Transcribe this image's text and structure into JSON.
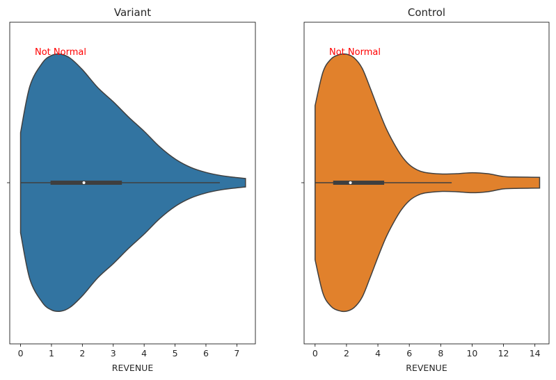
{
  "chart_data": [
    {
      "type": "violin",
      "title": "Variant",
      "xlabel": "REVENUE",
      "ylabel": "",
      "color": "#3274a1",
      "xlim": [
        -0.35,
        7.6
      ],
      "xticks": [
        0,
        1,
        2,
        3,
        4,
        5,
        6,
        7
      ],
      "annotation": "Not Normal",
      "density_profile": [
        [
          0.0,
          0.39
        ],
        [
          0.3,
          0.75
        ],
        [
          0.7,
          0.93
        ],
        [
          1.0,
          0.99
        ],
        [
          1.3,
          1.0
        ],
        [
          1.6,
          0.97
        ],
        [
          2.0,
          0.88
        ],
        [
          2.5,
          0.74
        ],
        [
          3.0,
          0.63
        ],
        [
          3.5,
          0.51
        ],
        [
          4.0,
          0.4
        ],
        [
          4.5,
          0.28
        ],
        [
          5.0,
          0.185
        ],
        [
          5.5,
          0.12
        ],
        [
          6.0,
          0.08
        ],
        [
          6.5,
          0.055
        ],
        [
          7.0,
          0.04
        ],
        [
          7.28,
          0.033
        ],
        [
          7.28,
          0.0
        ]
      ],
      "box": {
        "q1": 0.97,
        "median": 2.05,
        "q3": 3.28,
        "whisker_low": 0.0,
        "whisker_high": 6.45
      }
    },
    {
      "type": "violin",
      "title": "Control",
      "xlabel": "REVENUE",
      "ylabel": "",
      "color": "#e1812c",
      "xlim": [
        -0.7,
        14.9
      ],
      "xticks": [
        0,
        2,
        4,
        6,
        8,
        10,
        12,
        14
      ],
      "annotation": "Not Normal",
      "density_profile": [
        [
          0.0,
          0.6
        ],
        [
          0.5,
          0.86
        ],
        [
          1.0,
          0.96
        ],
        [
          1.5,
          0.995
        ],
        [
          2.0,
          1.0
        ],
        [
          2.5,
          0.97
        ],
        [
          3.0,
          0.89
        ],
        [
          3.5,
          0.74
        ],
        [
          4.0,
          0.58
        ],
        [
          4.5,
          0.43
        ],
        [
          5.0,
          0.31
        ],
        [
          5.5,
          0.21
        ],
        [
          6.0,
          0.14
        ],
        [
          6.5,
          0.1
        ],
        [
          7.0,
          0.08
        ],
        [
          8.0,
          0.068
        ],
        [
          9.0,
          0.07
        ],
        [
          10.0,
          0.078
        ],
        [
          11.0,
          0.07
        ],
        [
          12.0,
          0.048
        ],
        [
          13.0,
          0.044
        ],
        [
          14.3,
          0.042
        ],
        [
          14.3,
          0.0
        ]
      ],
      "box": {
        "q1": 1.15,
        "median": 2.25,
        "q3": 4.4,
        "whisker_low": 0.0,
        "whisker_high": 8.7
      }
    }
  ]
}
